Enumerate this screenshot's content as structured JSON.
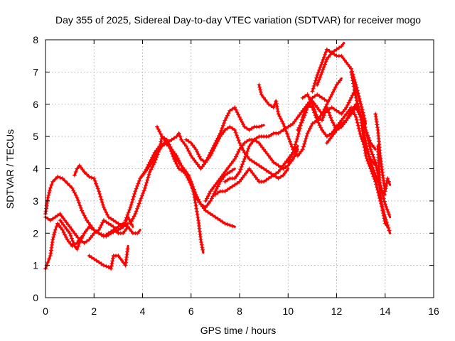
{
  "chart_data": {
    "type": "scatter",
    "title": "Day 355 of 2025, Sidereal Day-to-day VTEC variation (SDTVAR) for receiver mogo",
    "xlabel": "GPS time / hours",
    "ylabel": "SDTVAR / TECUs",
    "xlim": [
      0,
      16
    ],
    "ylim": [
      0,
      8
    ],
    "xticks": [
      "0",
      "2",
      "4",
      "6",
      "8",
      "10",
      "12",
      "14",
      "16"
    ],
    "yticks": [
      "0",
      "1",
      "2",
      "3",
      "4",
      "5",
      "6",
      "7",
      "8"
    ],
    "grid": true,
    "marker": "+",
    "color": "#ff0000",
    "series": [
      {
        "x": [
          0.0,
          0.1,
          0.2,
          0.3,
          0.5,
          0.7,
          0.9,
          1.1,
          1.3,
          1.5,
          1.7,
          2.0,
          2.2,
          2.5,
          2.7,
          3.0,
          3.2,
          3.4,
          3.6
        ],
        "y": [
          2.6,
          3.1,
          3.4,
          3.6,
          3.75,
          3.7,
          3.55,
          3.4,
          3.1,
          2.7,
          2.4,
          2.1,
          2.0,
          1.9,
          2.0,
          2.1,
          2.2,
          2.5,
          2.2
        ]
      },
      {
        "x": [
          0.0,
          0.1,
          0.2,
          0.3,
          0.4,
          0.5,
          0.7,
          0.9,
          1.1,
          1.3,
          1.5
        ],
        "y": [
          0.9,
          1.1,
          1.3,
          1.8,
          2.1,
          2.3,
          2.1,
          1.8,
          1.6,
          1.7,
          1.9
        ]
      },
      {
        "x": [
          0.0,
          0.2,
          0.4,
          0.6,
          0.8,
          1.0,
          1.2,
          1.4,
          1.6,
          1.8,
          2.0,
          2.2,
          2.4,
          2.6,
          2.8,
          3.0,
          3.2,
          3.4
        ],
        "y": [
          2.5,
          2.4,
          2.5,
          2.6,
          2.4,
          2.2,
          2.0,
          1.8,
          1.7,
          1.8,
          2.0,
          2.1,
          2.4,
          2.3,
          2.2,
          2.0,
          2.0,
          2.2
        ]
      },
      {
        "x": [
          0.6,
          0.8,
          1.0,
          1.2,
          1.3,
          1.4,
          1.6,
          1.8,
          2.0,
          2.2,
          2.4,
          2.6,
          2.8,
          3.0,
          3.2,
          3.4,
          3.6,
          3.8,
          3.9
        ],
        "y": [
          2.4,
          2.2,
          2.0,
          1.6,
          1.5,
          1.7,
          2.0,
          2.2,
          2.1,
          2.0,
          1.9,
          2.0,
          2.1,
          2.2,
          2.3,
          2.2,
          2.0,
          2.0,
          2.1
        ]
      },
      {
        "x": [
          1.2,
          1.3,
          1.4,
          1.6,
          1.8,
          2.0,
          2.2,
          2.4,
          2.6,
          2.8,
          3.0,
          3.2,
          3.4
        ],
        "y": [
          3.8,
          4.0,
          4.1,
          3.9,
          3.75,
          3.7,
          3.3,
          2.8,
          2.5,
          2.4,
          2.3,
          2.2,
          2.3
        ]
      },
      {
        "x": [
          1.8,
          2.0,
          2.2,
          2.4,
          2.6,
          2.7,
          2.8,
          3.0,
          3.1,
          3.2,
          3.3,
          3.4
        ],
        "y": [
          1.3,
          1.2,
          1.1,
          1.0,
          0.95,
          0.9,
          1.3,
          1.3,
          1.2,
          1.1,
          1.0,
          1.6
        ]
      },
      {
        "x": [
          3.3,
          3.5,
          3.7,
          3.9,
          4.1,
          4.3,
          4.5,
          4.7,
          4.9,
          5.1,
          5.3,
          5.5,
          5.7,
          5.9,
          6.1,
          6.3,
          6.4,
          6.5
        ],
        "y": [
          2.4,
          2.8,
          3.3,
          3.7,
          3.9,
          4.2,
          4.5,
          4.7,
          4.8,
          4.7,
          4.3,
          4.0,
          3.9,
          3.8,
          3.3,
          2.4,
          1.8,
          1.4
        ]
      },
      {
        "x": [
          3.5,
          3.7,
          3.9,
          4.1,
          4.3,
          4.5,
          4.7,
          4.8,
          5.0,
          5.2,
          5.4,
          5.6,
          5.8,
          6.0,
          6.2,
          6.4,
          6.6,
          6.8,
          7.0,
          7.2,
          7.4,
          7.6,
          7.8
        ],
        "y": [
          2.3,
          2.6,
          3.0,
          3.4,
          3.9,
          4.2,
          4.6,
          5.0,
          4.9,
          4.6,
          4.3,
          4.1,
          3.9,
          3.6,
          3.2,
          2.9,
          2.7,
          2.6,
          2.5,
          2.4,
          2.3,
          2.25,
          2.2
        ]
      },
      {
        "x": [
          4.0,
          4.2,
          4.4,
          4.6,
          4.8,
          5.0,
          5.2,
          5.4,
          5.6,
          5.8,
          6.0,
          6.2,
          6.4,
          6.6,
          6.8,
          7.0,
          7.2,
          7.4,
          7.6,
          7.8
        ],
        "y": [
          3.8,
          4.0,
          4.2,
          4.5,
          4.7,
          4.8,
          4.6,
          4.4,
          4.1,
          3.8,
          3.5,
          3.1,
          2.9,
          2.8,
          3.0,
          3.3,
          3.6,
          3.8,
          3.9,
          4.0
        ]
      },
      {
        "x": [
          4.6,
          4.8,
          5.0,
          5.2,
          5.4,
          5.5,
          5.6,
          5.8,
          6.0,
          6.2,
          6.4,
          6.6,
          6.8,
          7.0,
          7.2,
          7.4,
          7.6,
          7.8,
          8.0,
          8.2,
          8.4,
          8.6,
          8.8,
          9.0
        ],
        "y": [
          5.3,
          5.0,
          4.8,
          4.9,
          5.0,
          5.1,
          4.9,
          4.7,
          4.4,
          4.2,
          4.0,
          4.2,
          4.5,
          4.8,
          5.1,
          5.5,
          5.8,
          5.9,
          5.6,
          5.3,
          5.2,
          5.3,
          5.3,
          5.35
        ]
      },
      {
        "x": [
          5.8,
          6.0,
          6.2,
          6.4,
          6.6,
          6.8,
          7.0,
          7.2,
          7.4,
          7.6,
          7.8,
          8.0,
          8.2,
          8.4,
          8.6,
          8.8,
          9.0,
          9.2,
          9.4,
          9.6,
          9.8,
          10.0
        ],
        "y": [
          4.9,
          4.8,
          4.6,
          4.3,
          4.2,
          4.4,
          4.7,
          5.0,
          5.2,
          5.3,
          5.2,
          4.8,
          4.5,
          4.3,
          4.2,
          4.1,
          4.0,
          3.9,
          3.8,
          3.7,
          3.8,
          4.0
        ]
      },
      {
        "x": [
          6.6,
          6.8,
          7.0,
          7.2,
          7.4,
          7.6,
          7.8,
          8.0,
          8.2,
          8.4,
          8.6,
          8.8,
          9.0,
          9.2,
          9.4,
          9.6,
          9.8,
          10.0,
          10.2,
          10.4
        ],
        "y": [
          3.0,
          3.3,
          3.5,
          3.7,
          3.9,
          4.1,
          4.3,
          4.6,
          4.8,
          4.9,
          4.9,
          4.8,
          4.6,
          4.4,
          4.2,
          4.1,
          4.0,
          4.1,
          4.3,
          4.6
        ]
      },
      {
        "x": [
          7.0,
          7.2,
          7.4,
          7.6,
          7.8,
          8.0,
          8.2,
          8.4,
          8.6,
          8.8,
          9.0,
          9.2,
          9.4,
          9.6,
          9.8,
          10.0,
          10.2,
          10.4
        ],
        "y": [
          3.2,
          3.3,
          3.3,
          3.4,
          3.5,
          3.6,
          3.8,
          4.0,
          3.8,
          3.6,
          3.6,
          3.7,
          3.8,
          3.9,
          4.1,
          4.3,
          4.5,
          4.7
        ]
      },
      {
        "x": [
          7.4,
          7.6,
          7.8,
          8.0,
          8.2,
          8.4,
          8.6,
          8.8,
          9.0,
          9.2,
          9.4,
          9.6,
          9.8,
          10.0,
          10.2,
          10.4,
          10.6,
          10.8,
          11.0,
          11.2,
          11.4,
          11.6
        ],
        "y": [
          3.6,
          3.7,
          3.7,
          3.9,
          4.3,
          4.7,
          4.9,
          5.0,
          5.0,
          5.0,
          5.1,
          5.1,
          5.2,
          5.3,
          5.4,
          5.6,
          5.8,
          6.0,
          6.2,
          6.3,
          6.2,
          6.1
        ]
      },
      {
        "x": [
          8.8,
          8.9,
          9.0,
          9.2,
          9.4,
          9.5,
          9.6,
          9.8,
          10.0,
          10.2,
          10.4,
          10.6,
          10.8,
          11.0,
          11.2,
          11.4,
          11.6,
          11.8,
          12.0,
          12.2
        ],
        "y": [
          6.6,
          6.3,
          6.2,
          6.0,
          5.9,
          6.1,
          5.7,
          5.4,
          5.0,
          4.6,
          4.4,
          4.6,
          5.1,
          5.4,
          5.5,
          5.7,
          6.0,
          6.3,
          6.6,
          6.8
        ]
      },
      {
        "x": [
          10.0,
          10.2,
          10.4,
          10.6,
          10.8,
          11.0,
          11.2,
          11.4,
          11.6,
          11.8,
          12.0,
          12.2,
          12.4,
          12.6,
          12.8,
          13.0,
          13.2,
          13.4,
          13.6
        ],
        "y": [
          4.2,
          4.5,
          5.0,
          5.6,
          6.0,
          5.9,
          5.5,
          5.2,
          5.0,
          5.1,
          5.3,
          5.5,
          5.7,
          5.9,
          5.6,
          5.0,
          4.6,
          4.3,
          4.1
        ]
      },
      {
        "x": [
          10.4,
          10.6,
          10.8,
          11.0,
          11.2,
          11.4,
          11.6,
          11.8,
          12.0,
          12.2,
          12.4,
          12.6,
          12.8,
          13.0,
          13.2
        ],
        "y": [
          5.2,
          5.5,
          5.9,
          6.1,
          5.9,
          5.7,
          5.8,
          5.9,
          5.8,
          5.7,
          5.9,
          6.2,
          6.5,
          6.0,
          5.4
        ]
      },
      {
        "x": [
          10.6,
          10.8,
          11.0,
          11.2,
          11.4,
          11.6,
          11.8,
          12.0,
          12.2,
          12.4,
          12.6,
          12.8,
          13.0,
          13.2,
          13.4,
          13.6,
          13.8,
          14.0
        ],
        "y": [
          6.2,
          6.3,
          6.0,
          5.6,
          5.5,
          5.9,
          5.5,
          5.2,
          5.3,
          5.5,
          5.8,
          6.0,
          5.6,
          4.8,
          4.2,
          3.8,
          3.4,
          3.2
        ]
      },
      {
        "x": [
          11.0,
          11.2,
          11.4,
          11.6,
          11.8,
          12.0,
          12.2,
          12.4,
          12.6,
          12.8,
          13.0,
          13.2,
          13.4,
          13.6,
          13.8,
          14.0,
          14.2
        ],
        "y": [
          6.4,
          6.9,
          7.3,
          7.7,
          7.6,
          7.5,
          7.5,
          7.3,
          7.1,
          6.6,
          6.0,
          5.2,
          4.6,
          4.2,
          3.5,
          2.9,
          2.5
        ]
      },
      {
        "x": [
          11.2,
          11.4,
          11.6,
          11.8,
          12.0,
          12.2,
          12.3
        ],
        "y": [
          6.6,
          7.0,
          7.4,
          7.6,
          7.7,
          7.8,
          7.9
        ]
      },
      {
        "x": [
          11.6,
          11.8,
          12.0,
          12.2,
          12.4,
          12.6,
          12.8,
          13.0,
          13.2,
          13.4,
          13.6
        ],
        "y": [
          4.8,
          5.0,
          5.2,
          5.4,
          5.5,
          5.7,
          5.9,
          5.6,
          5.2,
          4.8,
          4.6
        ]
      },
      {
        "x": [
          12.6,
          12.8,
          13.0,
          13.1,
          13.2,
          13.4,
          13.6,
          13.8,
          14.0,
          14.2
        ],
        "y": [
          7.0,
          6.2,
          5.6,
          5.0,
          4.4,
          4.0,
          3.6,
          3.0,
          2.5,
          2.0
        ]
      },
      {
        "x": [
          13.6,
          13.7,
          13.8,
          13.9,
          14.0,
          14.1,
          14.2
        ],
        "y": [
          5.7,
          5.2,
          4.4,
          3.8,
          3.3,
          3.7,
          3.5
        ]
      },
      {
        "x": [
          13.7,
          13.8,
          13.9,
          14.0,
          14.1
        ],
        "y": [
          4.7,
          3.2,
          2.7,
          2.3,
          2.2
        ]
      }
    ]
  }
}
